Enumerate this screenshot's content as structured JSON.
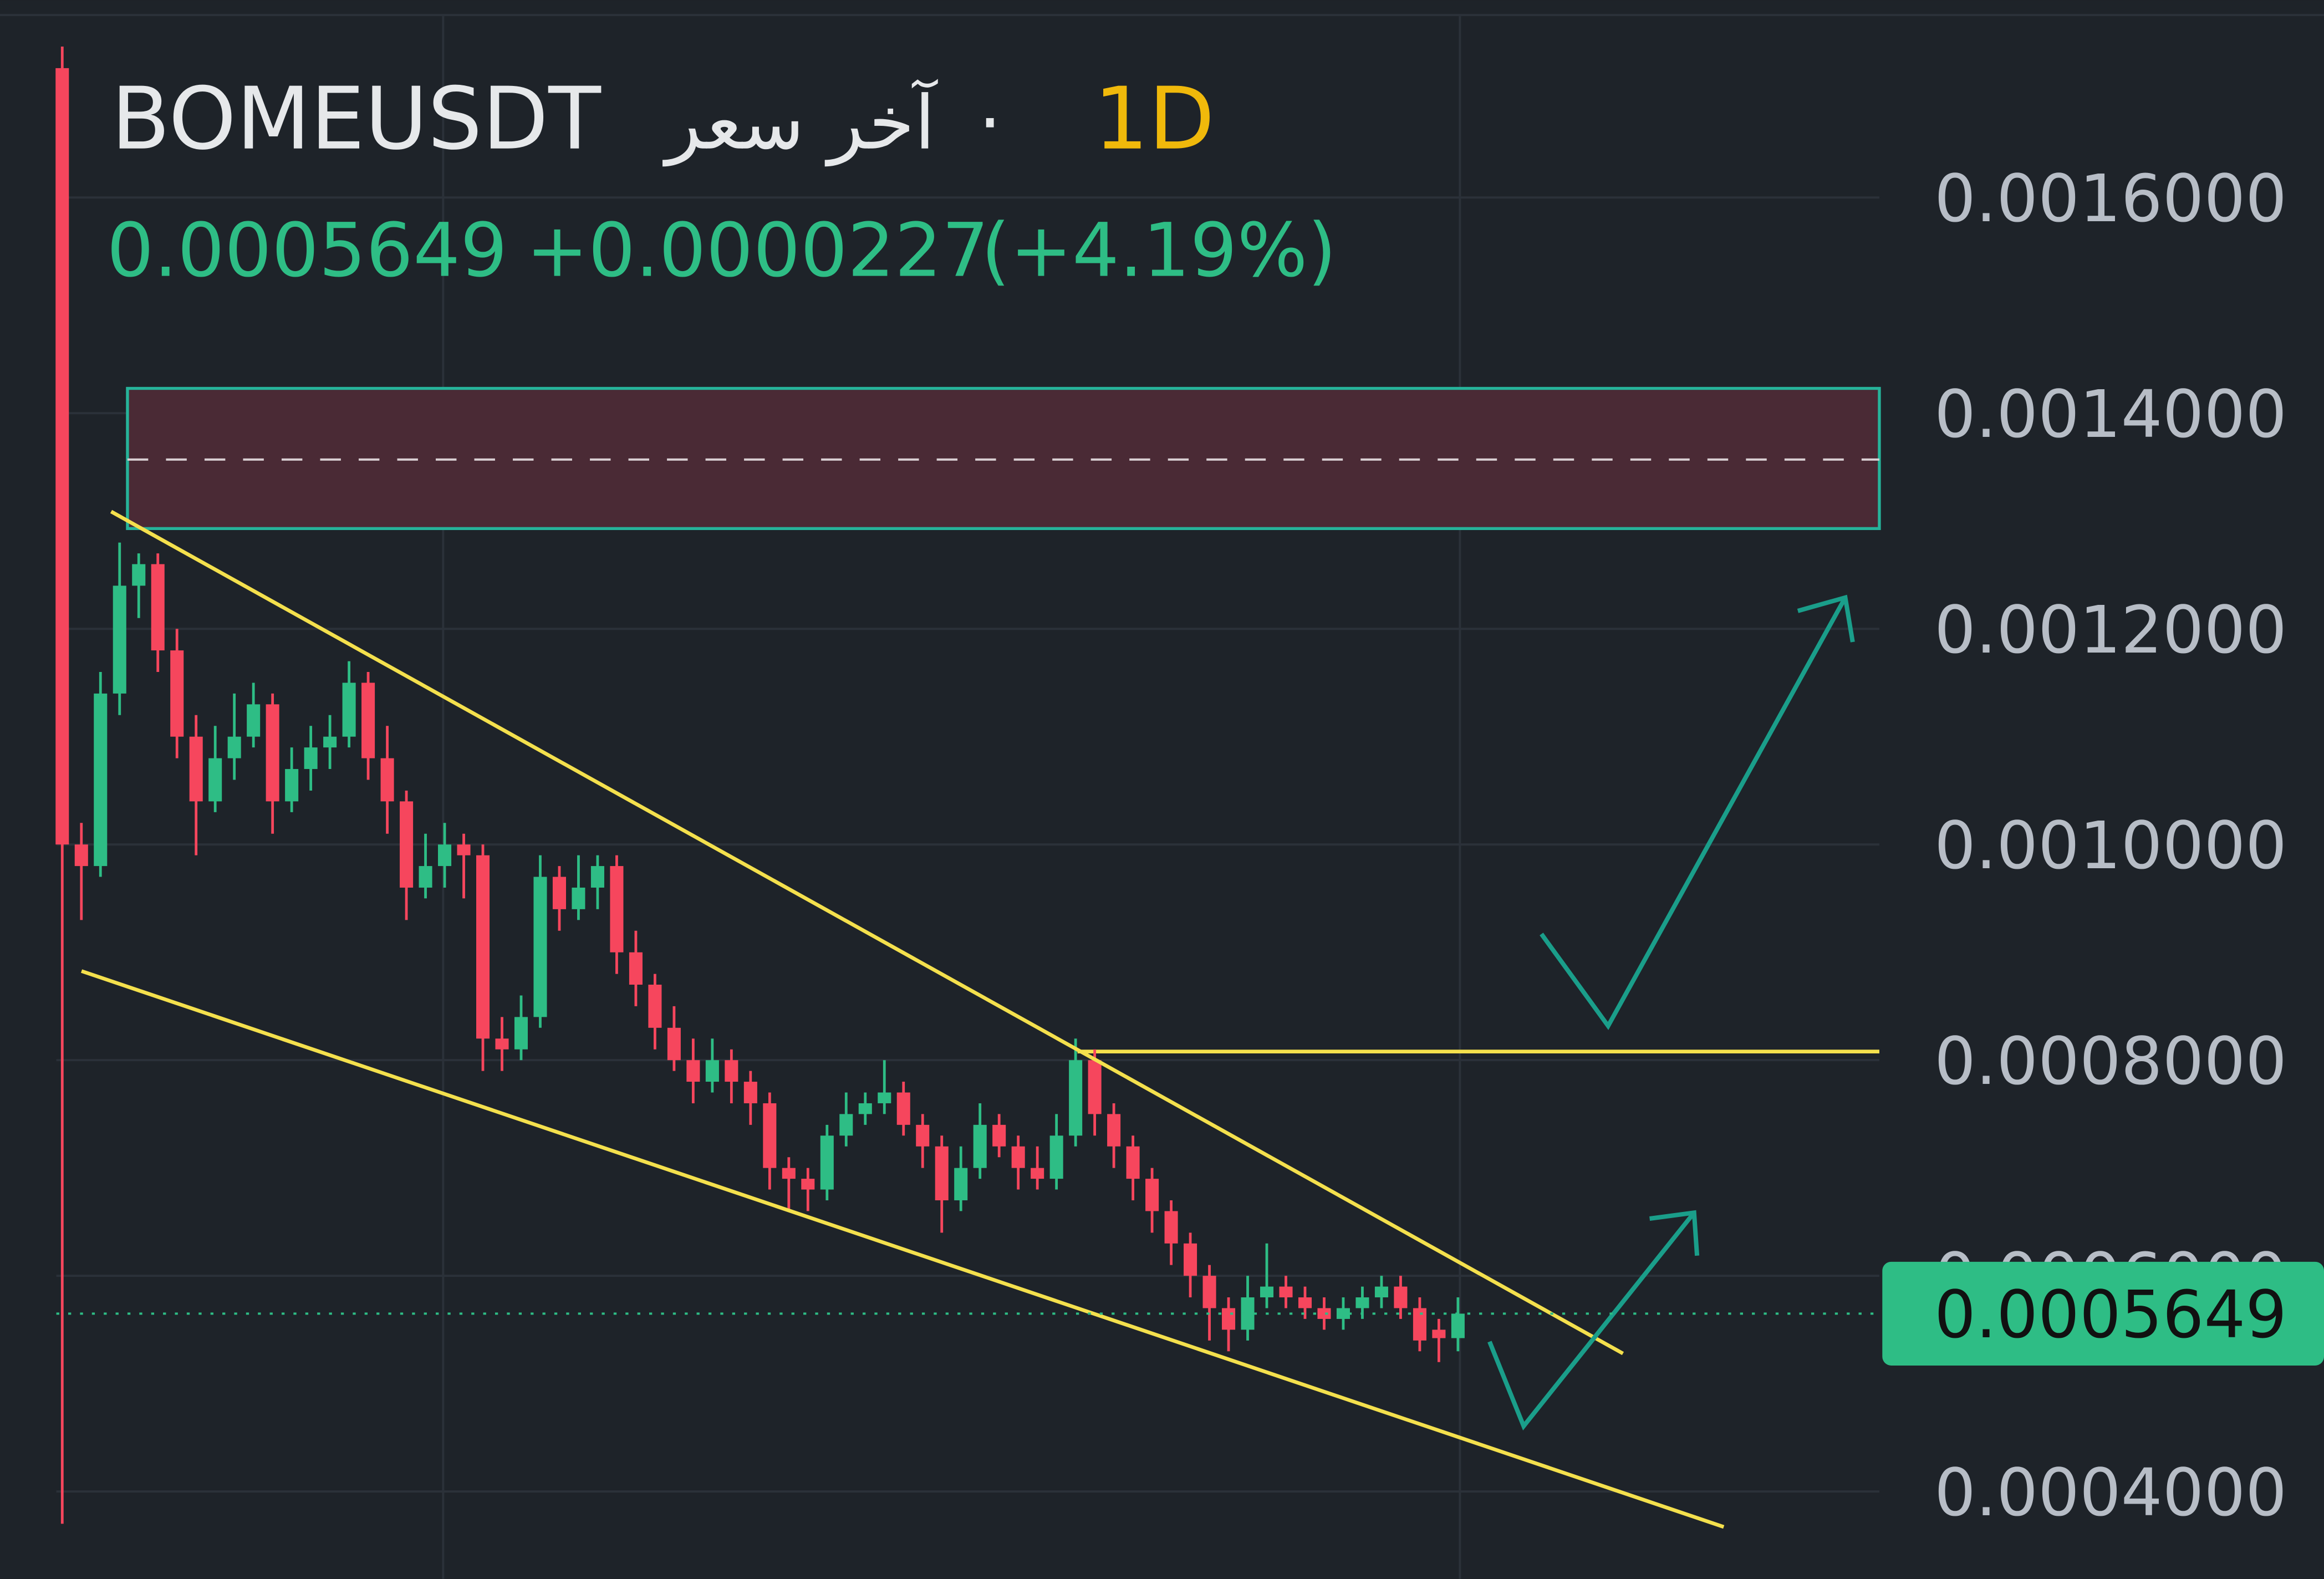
{
  "chart_data": {
    "type": "candlestick",
    "symbol": "BOMEUSDT",
    "price_caption": "آخر سعر",
    "separator": "·",
    "interval": "1D",
    "last_price": 0.0005649,
    "change": "+0.0000227",
    "change_pct": "(+4.19%)",
    "up_color": "#2ebd85",
    "down_color": "#f6465d",
    "ylim": [
      0.000319,
      0.001783
    ],
    "yticks": [
      {
        "value": 0.0016,
        "label": "0.0016000"
      },
      {
        "value": 0.0014,
        "label": "0.0014000"
      },
      {
        "value": 0.0012,
        "label": "0.0012000"
      },
      {
        "value": 0.001,
        "label": "0.0010000"
      },
      {
        "value": 0.0008,
        "label": "0.0008000"
      },
      {
        "value": 0.0006,
        "label": "0.0006000"
      },
      {
        "value": 0.0004,
        "label": "0.0004000"
      }
    ],
    "grid": true,
    "zone": {
      "top": 0.001423,
      "bottom": 0.001293,
      "mid": 0.001357
    },
    "resistance": 0.000808,
    "open": [
      0.00172,
      0.001,
      0.00098,
      0.00114,
      0.00124,
      0.00126,
      0.00118,
      0.0011,
      0.00104,
      0.00108,
      0.0011,
      0.00113,
      0.00104,
      0.00107,
      0.00109,
      0.0011,
      0.00115,
      0.00108,
      0.00104,
      0.00096,
      0.00098,
      0.001,
      0.00099,
      0.00082,
      0.00081,
      0.00084,
      0.00097,
      0.00094,
      0.00096,
      0.00098,
      0.0009,
      0.00087,
      0.00083,
      0.0008,
      0.00078,
      0.0008,
      0.00078,
      0.00076,
      0.0007,
      0.00069,
      0.00068,
      0.00073,
      0.00075,
      0.00076,
      0.00077,
      0.00074,
      0.00072,
      0.00067,
      0.0007,
      0.00074,
      0.00072,
      0.0007,
      0.00069,
      0.00073,
      0.0008,
      0.00075,
      0.00072,
      0.00069,
      0.00066,
      0.00063,
      0.0006,
      0.00057,
      0.00055,
      0.00058,
      0.00059,
      0.00058,
      0.00057,
      0.00056,
      0.00057,
      0.00058,
      0.00059,
      0.00057,
      0.00055,
      0.0005422
    ],
    "high": [
      0.00174,
      0.00102,
      0.00116,
      0.00128,
      0.00127,
      0.00127,
      0.0012,
      0.00112,
      0.00111,
      0.00114,
      0.00115,
      0.00114,
      0.00109,
      0.00111,
      0.00112,
      0.00117,
      0.00116,
      0.00111,
      0.00105,
      0.00101,
      0.00102,
      0.00101,
      0.001,
      0.00084,
      0.00086,
      0.00099,
      0.00098,
      0.00099,
      0.00099,
      0.00099,
      0.00092,
      0.00088,
      0.00085,
      0.00082,
      0.00082,
      0.00081,
      0.00079,
      0.00077,
      0.00071,
      0.0007,
      0.00074,
      0.00077,
      0.00077,
      0.0008,
      0.00078,
      0.00075,
      0.00073,
      0.00072,
      0.00076,
      0.00075,
      0.00073,
      0.00072,
      0.00075,
      0.00082,
      0.00081,
      0.00076,
      0.00073,
      0.0007,
      0.00067,
      0.00064,
      0.00061,
      0.00058,
      0.0006,
      0.00063,
      0.0006,
      0.00059,
      0.00058,
      0.00058,
      0.00059,
      0.0006,
      0.0006,
      0.00058,
      0.00056,
      0.00058
    ],
    "low": [
      0.00037,
      0.00093,
      0.00097,
      0.00112,
      0.00121,
      0.00116,
      0.00108,
      0.00099,
      0.00103,
      0.00106,
      0.00109,
      0.00101,
      0.00103,
      0.00105,
      0.00107,
      0.00109,
      0.00106,
      0.00101,
      0.00093,
      0.00095,
      0.00096,
      0.00095,
      0.00079,
      0.00079,
      0.0008,
      0.00083,
      0.00092,
      0.00093,
      0.00094,
      0.00088,
      0.00085,
      0.00081,
      0.00079,
      0.00076,
      0.00077,
      0.00076,
      0.00074,
      0.00068,
      0.00066,
      0.00066,
      0.00067,
      0.00072,
      0.00074,
      0.00075,
      0.00073,
      0.0007,
      0.00064,
      0.00066,
      0.00069,
      0.00071,
      0.00068,
      0.00068,
      0.00068,
      0.00072,
      0.00073,
      0.0007,
      0.00067,
      0.00064,
      0.00061,
      0.00058,
      0.00054,
      0.00053,
      0.00054,
      0.00057,
      0.00057,
      0.00056,
      0.00055,
      0.00055,
      0.00056,
      0.00057,
      0.00056,
      0.00053,
      0.00052,
      0.00053
    ],
    "close": [
      0.001,
      0.00098,
      0.00114,
      0.00124,
      0.00126,
      0.00118,
      0.0011,
      0.00104,
      0.00108,
      0.0011,
      0.00113,
      0.00104,
      0.00107,
      0.00109,
      0.0011,
      0.00115,
      0.00108,
      0.00104,
      0.00096,
      0.00098,
      0.001,
      0.00099,
      0.00082,
      0.00081,
      0.00084,
      0.00097,
      0.00094,
      0.00096,
      0.00098,
      0.0009,
      0.00087,
      0.00083,
      0.0008,
      0.00078,
      0.0008,
      0.00078,
      0.00076,
      0.0007,
      0.00069,
      0.00068,
      0.00073,
      0.00075,
      0.00076,
      0.00077,
      0.00074,
      0.00072,
      0.00067,
      0.0007,
      0.00074,
      0.00072,
      0.0007,
      0.00069,
      0.00073,
      0.0008,
      0.00075,
      0.00072,
      0.00069,
      0.00066,
      0.00063,
      0.0006,
      0.00057,
      0.00055,
      0.00058,
      0.00059,
      0.00058,
      0.00057,
      0.00056,
      0.00057,
      0.00058,
      0.00059,
      0.00057,
      0.00054,
      0.0005422,
      0.0005649
    ]
  }
}
